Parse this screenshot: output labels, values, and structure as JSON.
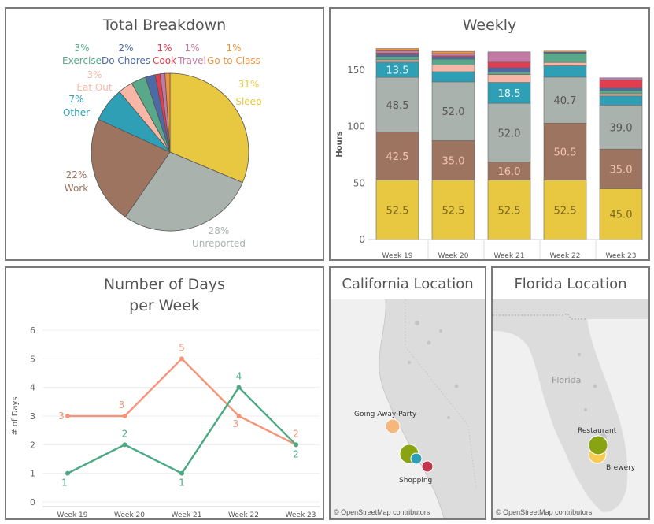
{
  "panels": {
    "total": {
      "title": "Total Breakdown"
    },
    "weekly": {
      "title": "Weekly",
      "ylabel": "Hours"
    },
    "days": {
      "title_line1": "Number of Days",
      "title_line2": "per Week",
      "ylabel": "# of Days"
    },
    "california": {
      "title": "California Location"
    },
    "florida": {
      "title": "Florida Location"
    }
  },
  "colors": {
    "sleep": "#e8c840",
    "unreported": "#a9b2ad",
    "work": "#9c7460",
    "other": "#2f9fb6",
    "eat_out": "#f8b7a6",
    "exercise": "#59a889",
    "do_chores": "#4e6aa6",
    "cook": "#e03e4e",
    "travel": "#c47aa4",
    "go_to_class": "#f0943c",
    "line_orange": "#f4957a",
    "line_green": "#4ca883"
  },
  "chart_data": [
    {
      "type": "pie",
      "title": "Total Breakdown",
      "slices": [
        {
          "name": "Sleep",
          "percent": 31,
          "label": "31%"
        },
        {
          "name": "Unreported",
          "percent": 28,
          "label": "28%"
        },
        {
          "name": "Work",
          "percent": 22,
          "label": "22%"
        },
        {
          "name": "Other",
          "percent": 7,
          "label": "7%"
        },
        {
          "name": "Eat Out",
          "percent": 3,
          "label": "3%"
        },
        {
          "name": "Exercise",
          "percent": 3,
          "label": "3%"
        },
        {
          "name": "Do Chores",
          "percent": 2,
          "label": "2%"
        },
        {
          "name": "Cook",
          "percent": 1,
          "label": "1%"
        },
        {
          "name": "Travel",
          "percent": 1,
          "label": "1%"
        },
        {
          "name": "Go to Class",
          "percent": 1,
          "label": "1%"
        }
      ]
    },
    {
      "type": "bar",
      "stacked": true,
      "title": "Weekly",
      "ylabel": "Hours",
      "ylim": [
        0,
        168
      ],
      "yticks": [
        0,
        50,
        100,
        150
      ],
      "categories": [
        "Week 19",
        "Week 20",
        "Week 21",
        "Week 22",
        "Week 23"
      ],
      "series": [
        {
          "name": "Sleep",
          "values": [
            52.5,
            52.5,
            52.5,
            52.5,
            45.0
          ],
          "labels": [
            "52.5",
            "52.5",
            "52.5",
            "52.5",
            "45.0"
          ]
        },
        {
          "name": "Work",
          "values": [
            42.5,
            35.0,
            16.0,
            50.5,
            35.0
          ],
          "labels": [
            "42.5",
            "35.0",
            "16.0",
            "50.5",
            "35.0"
          ]
        },
        {
          "name": "Unreported",
          "values": [
            48.5,
            52.0,
            52.0,
            40.7,
            39.0
          ],
          "labels": [
            "48.5",
            "52.0",
            "52.0",
            "40.7",
            "39.0"
          ]
        },
        {
          "name": "Other",
          "values": [
            13.5,
            9,
            18.5,
            10,
            8
          ],
          "labels": [
            "13.5",
            "",
            "18.5",
            "",
            ""
          ]
        },
        {
          "name": "Eat Out",
          "values": [
            2,
            6,
            7,
            3,
            2
          ],
          "labels": [
            "",
            "",
            "",
            "",
            ""
          ]
        },
        {
          "name": "Exercise",
          "values": [
            3,
            5,
            2,
            8,
            3
          ],
          "labels": [
            "",
            "",
            "",
            "",
            ""
          ]
        },
        {
          "name": "Do Chores",
          "values": [
            2,
            2,
            4,
            1,
            2
          ],
          "labels": [
            "",
            "",
            "",
            "",
            ""
          ]
        },
        {
          "name": "Cook",
          "values": [
            1,
            1,
            5,
            0,
            7
          ],
          "labels": [
            "",
            "",
            "",
            "",
            ""
          ]
        },
        {
          "name": "Travel",
          "values": [
            2,
            2,
            9,
            0,
            2
          ],
          "labels": [
            "",
            "",
            "",
            "",
            ""
          ]
        },
        {
          "name": "Go to Class",
          "values": [
            2,
            2,
            0,
            1,
            0
          ],
          "labels": [
            "",
            "",
            "",
            "",
            ""
          ]
        }
      ]
    },
    {
      "type": "line",
      "title": "Number of Days per Week",
      "ylabel": "# of Days",
      "ylim": [
        0,
        6
      ],
      "yticks": [
        0,
        1,
        2,
        3,
        4,
        5,
        6
      ],
      "categories": [
        "Week 19",
        "Week 20",
        "Week 21",
        "Week 22",
        "Week 23"
      ],
      "series": [
        {
          "values": [
            3,
            3,
            5,
            3,
            2
          ],
          "labels": [
            "3",
            "3",
            "5",
            "3",
            "2"
          ]
        },
        {
          "values": [
            1,
            2,
            1,
            4,
            2
          ],
          "labels": [
            "1",
            "2",
            "1",
            "4",
            "2"
          ]
        }
      ]
    }
  ],
  "maps": {
    "california": {
      "attribution": "© OpenStreetMap contributors",
      "labels": [
        "Going Away Party",
        "Shopping"
      ]
    },
    "florida": {
      "attribution": "© OpenStreetMap contributors",
      "state_label": "Florida",
      "labels": [
        "Restaurant",
        "Brewery"
      ]
    }
  }
}
